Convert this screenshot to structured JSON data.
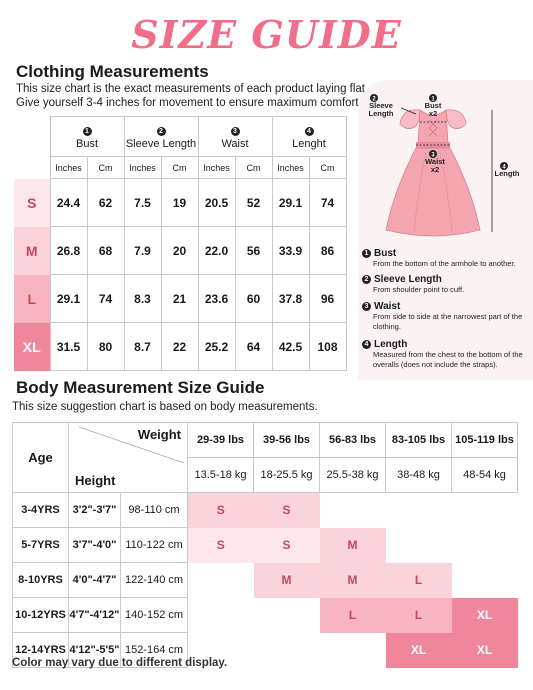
{
  "title": "SIZE GUIDE",
  "clothing": {
    "heading": "Clothing Measurements",
    "note_line1": "This size chart is the exact measurements of each product laying flat.",
    "note_line2": "Give yourself 3-4 inches for movement to ensure maximum comfort.",
    "measures": [
      {
        "num": "1",
        "name": "Bust"
      },
      {
        "num": "2",
        "name": "Sleeve Length"
      },
      {
        "num": "3",
        "name": "Waist"
      },
      {
        "num": "4",
        "name": "Lenght"
      }
    ],
    "unit_in": "Inches",
    "unit_cm": "Cm",
    "rows": [
      {
        "size": "S",
        "vals": [
          "24.4",
          "62",
          "7.5",
          "19",
          "20.5",
          "52",
          "29.1",
          "74"
        ]
      },
      {
        "size": "M",
        "vals": [
          "26.8",
          "68",
          "7.9",
          "20",
          "22.0",
          "56",
          "33.9",
          "86"
        ]
      },
      {
        "size": "L",
        "vals": [
          "29.1",
          "74",
          "8.3",
          "21",
          "23.6",
          "60",
          "37.8",
          "96"
        ]
      },
      {
        "size": "XL",
        "vals": [
          "31.5",
          "80",
          "8.7",
          "22",
          "25.2",
          "64",
          "42.5",
          "108"
        ]
      }
    ],
    "size_colors": [
      "#fde7ea",
      "#fbd3da",
      "#f8b4c1",
      "#f0869c"
    ]
  },
  "diagram": {
    "sleeve_label": "Sleeve Length",
    "bust_label": "Bust x2",
    "waist_label": "Waist x2",
    "length_label": "Length",
    "dress_color": "#f4a6b0",
    "definitions": [
      {
        "num": "1",
        "term": "Bust",
        "text": "From the bottom of the armhole to another."
      },
      {
        "num": "2",
        "term": "Sleeve Length",
        "text": "From shoulder point to cuff."
      },
      {
        "num": "3",
        "term": "Waist",
        "text": "From side to side at the narrowest part of the clothing."
      },
      {
        "num": "4",
        "term": "Length",
        "text": "Measured from the chest to the bottom of the overalls (does not include the straps)."
      }
    ]
  },
  "body": {
    "heading": "Body Measurement Size Guide",
    "note": "This size suggestion chart is based on body measurements.",
    "age_label": "Age",
    "weight_label": "Weight",
    "height_label": "Height",
    "weights_lbs": [
      "29-39 lbs",
      "39-56 lbs",
      "56-83 lbs",
      "83-105 lbs",
      "105-119 lbs"
    ],
    "weights_kg": [
      "13.5-18 kg",
      "18-25.5 kg",
      "25.5-38 kg",
      "38-48 kg",
      "48-54 kg"
    ],
    "rows": [
      {
        "age": "3-4YRS",
        "ft": "3'2\"-3'7\"",
        "cm": "98-110 cm",
        "cells": [
          "S",
          "S",
          "",
          "",
          ""
        ]
      },
      {
        "age": "5-7YRS",
        "ft": "3'7\"-4'0\"",
        "cm": "110-122 cm",
        "cells": [
          "S",
          "S",
          "M",
          "",
          ""
        ]
      },
      {
        "age": "8-10YRS",
        "ft": "4'0\"-4'7\"",
        "cm": "122-140 cm",
        "cells": [
          "",
          "M",
          "M",
          "L",
          ""
        ]
      },
      {
        "age": "10-12YRS",
        "ft": "4'7\"-4'12\"",
        "cm": "140-152 cm",
        "cells": [
          "",
          "",
          "L",
          "L",
          "XL"
        ]
      },
      {
        "age": "12-14YRS",
        "ft": "4'12\"-5'5\"",
        "cm": "152-164 cm",
        "cells": [
          "",
          "",
          "",
          "XL",
          "XL"
        ]
      }
    ],
    "footer": "Color may vary due to different display."
  }
}
